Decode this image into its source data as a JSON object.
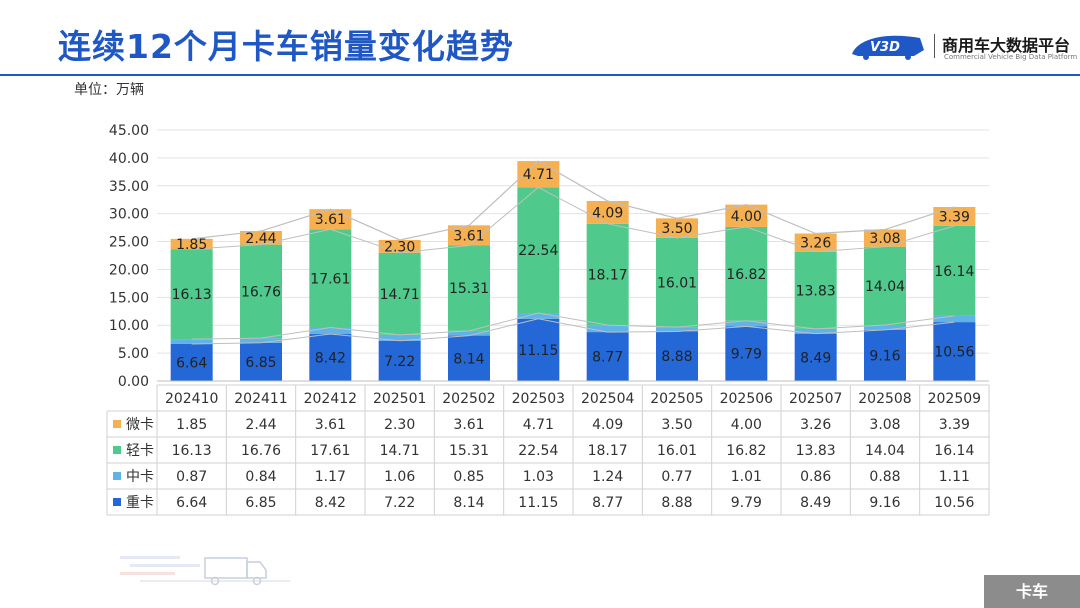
{
  "header": {
    "title": "连续12个月卡车销量变化趋势",
    "unit_label": "单位：万辆",
    "logo_mark": "V3D",
    "logo_name": "商用车大数据平台",
    "logo_subtitle": "Commercial Vehicle Big Data Platform"
  },
  "footer": {
    "tab_label": "卡车"
  },
  "colors": {
    "title": "#1f58c5",
    "heavy": "#2468d7",
    "medium": "#5fb3e6",
    "light": "#4fca8c",
    "mini": "#f5b052",
    "outline": "#bfbfbf"
  },
  "chart_data": {
    "type": "bar",
    "stacked": true,
    "categories": [
      "202410",
      "202411",
      "202412",
      "202501",
      "202502",
      "202503",
      "202504",
      "202505",
      "202506",
      "202507",
      "202508",
      "202509"
    ],
    "ylim": [
      0,
      45
    ],
    "yticks": [
      "0.00",
      "5.00",
      "10.00",
      "15.00",
      "20.00",
      "25.00",
      "30.00",
      "35.00",
      "40.00",
      "45.00"
    ],
    "grid": true,
    "legend": "data-table",
    "series": [
      {
        "name": "微卡",
        "key": "mini",
        "values": [
          1.85,
          2.44,
          3.61,
          2.3,
          3.61,
          4.71,
          4.09,
          3.5,
          4.0,
          3.26,
          3.08,
          3.39
        ]
      },
      {
        "name": "轻卡",
        "key": "light",
        "values": [
          16.13,
          16.76,
          17.61,
          14.71,
          15.31,
          22.54,
          18.17,
          16.01,
          16.82,
          13.83,
          14.04,
          16.14
        ]
      },
      {
        "name": "中卡",
        "key": "medium",
        "values": [
          0.87,
          0.84,
          1.17,
          1.06,
          0.85,
          1.03,
          1.24,
          0.77,
          1.01,
          0.86,
          0.88,
          1.11
        ]
      },
      {
        "name": "重卡",
        "key": "heavy",
        "values": [
          6.64,
          6.85,
          8.42,
          7.22,
          8.14,
          11.15,
          8.77,
          8.88,
          9.79,
          8.49,
          9.16,
          10.56
        ]
      }
    ]
  }
}
